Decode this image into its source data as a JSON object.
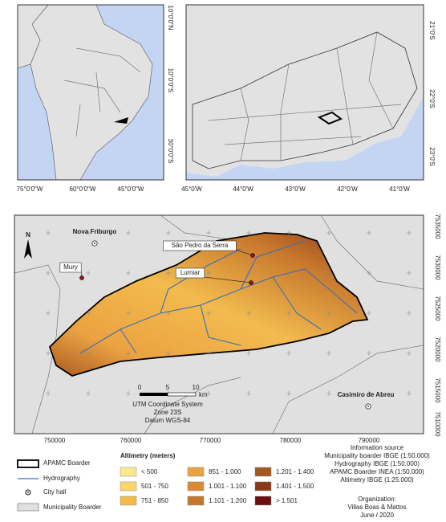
{
  "inset_south_america": {
    "lon_labels": [
      "75°0'0\"W",
      "60°0'0\"W",
      "45°0'0\"W"
    ],
    "lat_labels": [
      "10°0'0\"N",
      "10°0'0\"S",
      "30°0'0\"S"
    ]
  },
  "inset_state": {
    "lon_labels": [
      "45°0'W",
      "44°0'W",
      "43°0'W",
      "42°0'W",
      "41°0'W"
    ],
    "lat_labels": [
      "21°0'S",
      "22°0'S",
      "23°0'S"
    ]
  },
  "main_map": {
    "north_arrow": "N",
    "places": [
      {
        "label": "Nova Friburgo",
        "style": "bold"
      },
      {
        "label": "São Pedro da Serra",
        "style": "box"
      },
      {
        "label": "Lumiar",
        "style": "box"
      },
      {
        "label": "Mury",
        "style": "box"
      },
      {
        "label": "Casimiro de Abreu",
        "style": "bold"
      }
    ],
    "easting_labels": [
      "750000",
      "760000",
      "770000",
      "780000",
      "790000"
    ],
    "northing_labels": [
      "7535000",
      "7530000",
      "7525000",
      "7520000",
      "7515000",
      "7510000"
    ],
    "scale_bar": {
      "ticks": [
        "0",
        "5",
        "10"
      ],
      "unit": "km"
    },
    "projection": [
      "UTM Coordinate System",
      "Zone 23S",
      "Datum WGS-84"
    ]
  },
  "legend": {
    "items": [
      "APAMC Boarder",
      "Hydrography",
      "City hall",
      "Municipality Boarder"
    ],
    "altimetry": {
      "title": "Altimetry (meters)",
      "classes": [
        {
          "label": "< 500",
          "color": "#fde98d"
        },
        {
          "label": "501 - 750",
          "color": "#fbd46a"
        },
        {
          "label": "751 - 850",
          "color": "#f3bb4e"
        },
        {
          "label": "851 - 1.000",
          "color": "#eba241"
        },
        {
          "label": "1.001 - 1.100",
          "color": "#d88a35"
        },
        {
          "label": "1.101 - 1.200",
          "color": "#c6772c"
        },
        {
          "label": "1.201 - 1.400",
          "color": "#a65823"
        },
        {
          "label": "1.401 - 1.500",
          "color": "#8a3818"
        },
        {
          "label": "> 1.501",
          "color": "#6b1010"
        }
      ]
    }
  },
  "info": {
    "title": "Information source",
    "lines": [
      "Municipality boarder IBGE (1:50.000)",
      "Hydrography IBGE (1:50.000)",
      "APAMC Boarder INEA (1:50.000)",
      "Altimetry IBGE (1:25.000)"
    ]
  },
  "credits": {
    "title": "Organization:",
    "lines": [
      "Villas Boas & Mattos",
      "June / 2020"
    ]
  }
}
